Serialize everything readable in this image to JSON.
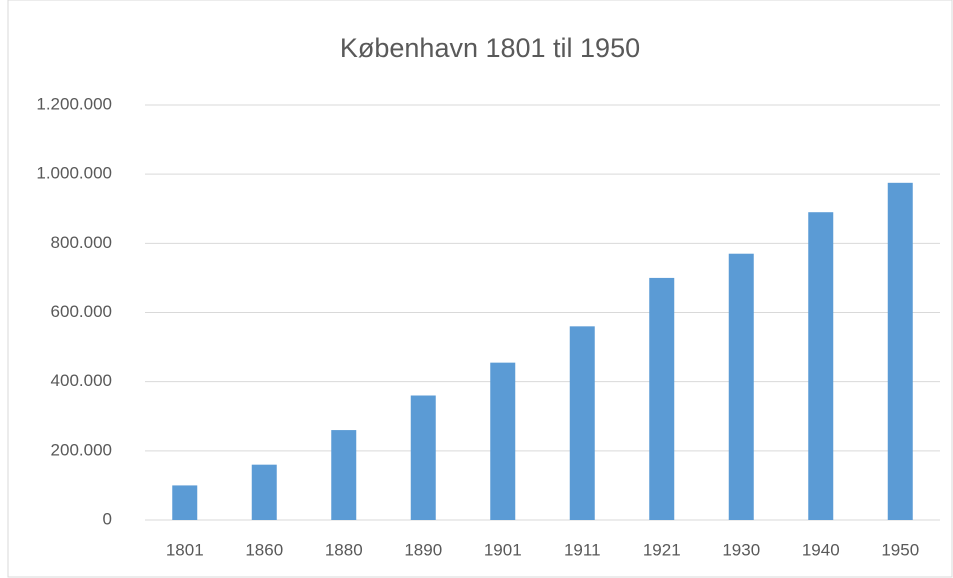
{
  "chart_data": {
    "type": "bar",
    "title": "København 1801 til 1950",
    "categories": [
      "1801",
      "1860",
      "1880",
      "1890",
      "1901",
      "1911",
      "1921",
      "1930",
      "1940",
      "1950"
    ],
    "values": [
      100000,
      160000,
      260000,
      360000,
      455000,
      560000,
      700000,
      770000,
      890000,
      975000
    ],
    "color": "#5b9bd5",
    "ylim": [
      0,
      1200000
    ],
    "yticks": [
      0,
      {
        "value": 200000,
        "label": "200.000"
      },
      {
        "value": 400000,
        "label": "400.000"
      },
      {
        "value": 600000,
        "label": "600.000"
      },
      {
        "value": 800000,
        "label": "800.000"
      },
      {
        "value": 1000000,
        "label": "1.000.000"
      },
      {
        "value": 1200000,
        "label": "1.200.000"
      }
    ],
    "grid": true
  }
}
